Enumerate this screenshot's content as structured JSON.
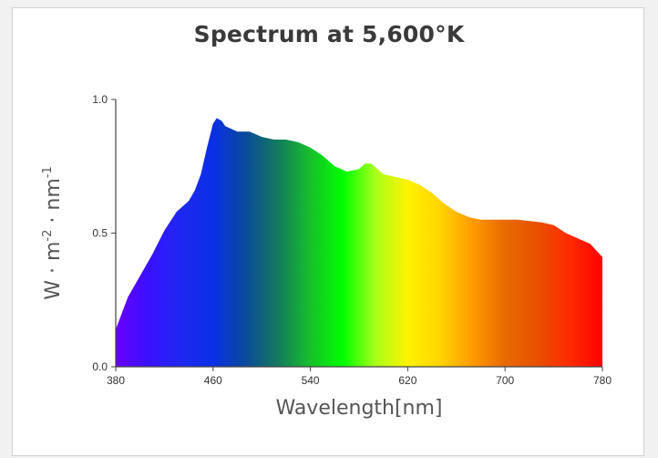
{
  "chart_data": {
    "type": "area",
    "title": "Spectrum at 5,600°K",
    "xlabel": "Wavelength[nm]",
    "ylabel": {
      "base": "W · m",
      "sup1": "-2",
      "mid": " · nm",
      "sup2": "-1"
    },
    "xlim": [
      380,
      780
    ],
    "ylim": [
      0,
      1.0
    ],
    "x_ticks": [
      380,
      460,
      540,
      620,
      700,
      780
    ],
    "y_ticks": [
      "0.0",
      "0.5",
      "1.0"
    ],
    "grid": false,
    "fill": "visible-spectrum rainbow gradient (violet → blue → green → yellow → orange → red)",
    "x": [
      380,
      390,
      400,
      410,
      420,
      430,
      440,
      445,
      450,
      455,
      460,
      463,
      467,
      470,
      480,
      490,
      500,
      510,
      520,
      530,
      540,
      550,
      560,
      570,
      580,
      585,
      590,
      595,
      600,
      610,
      620,
      630,
      640,
      650,
      660,
      670,
      680,
      690,
      700,
      710,
      720,
      730,
      740,
      750,
      760,
      770,
      780
    ],
    "y": [
      0.14,
      0.26,
      0.34,
      0.42,
      0.51,
      0.58,
      0.62,
      0.66,
      0.72,
      0.82,
      0.91,
      0.93,
      0.92,
      0.9,
      0.88,
      0.88,
      0.86,
      0.85,
      0.85,
      0.84,
      0.82,
      0.79,
      0.75,
      0.73,
      0.74,
      0.76,
      0.76,
      0.74,
      0.72,
      0.71,
      0.7,
      0.68,
      0.65,
      0.61,
      0.58,
      0.56,
      0.55,
      0.55,
      0.55,
      0.55,
      0.545,
      0.54,
      0.53,
      0.5,
      0.48,
      0.46,
      0.41
    ]
  },
  "colors": {
    "stops": [
      "#6a00ff",
      "#3a10ff",
      "#1f28f0",
      "#0a2fe6",
      "#0a4a9a",
      "#147a5e",
      "#16c02a",
      "#00ff00",
      "#a8ff1a",
      "#fff200",
      "#ffd400",
      "#ff9a00",
      "#e86a00",
      "#e85000",
      "#ff2a00",
      "#ff0000"
    ]
  }
}
